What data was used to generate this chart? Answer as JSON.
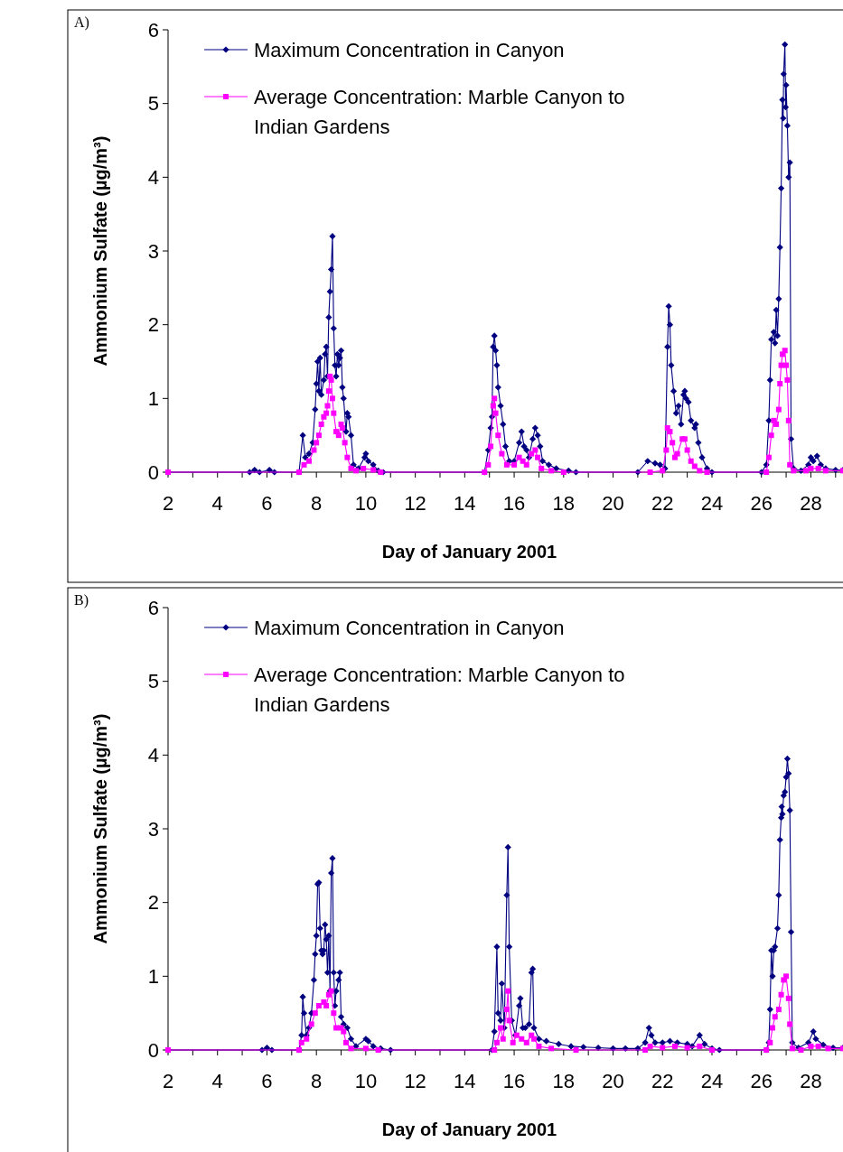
{
  "chart_data": [
    {
      "type": "line",
      "title": "A)",
      "xlabel": "Day of January 2001",
      "ylabel": "Ammonium Sulfate (µg/m³)",
      "xlim": [
        2,
        29.3
      ],
      "ylim": [
        0,
        6
      ],
      "yticks": [
        0,
        1,
        2,
        3,
        4,
        5,
        6
      ],
      "xticks": [
        2,
        {
          "value": 3,
          "label": null
        },
        4,
        {
          "value": 5,
          "label": null
        },
        6,
        {
          "value": 7,
          "label": null
        },
        8,
        {
          "value": 9,
          "label": null
        },
        10,
        {
          "value": 11,
          "label": null
        },
        12,
        {
          "value": 13,
          "label": null
        },
        14,
        {
          "value": 15,
          "label": null
        },
        16,
        {
          "value": 17,
          "label": null
        },
        18,
        {
          "value": 19,
          "label": null
        },
        20,
        {
          "value": 21,
          "label": null
        },
        22,
        {
          "value": 23,
          "label": null
        },
        24,
        {
          "value": 25,
          "label": null
        },
        26,
        {
          "value": 27,
          "label": null
        },
        28,
        {
          "value": 29,
          "label": null
        }
      ],
      "grid": false,
      "legend": "top left",
      "line_style": "solid",
      "series": [
        {
          "name": "Maximum Concentration in Canyon",
          "color": "#000080",
          "marker": "diamond",
          "x": [
            2,
            5.3,
            5.5,
            5.7,
            6.1,
            6.3,
            7.3,
            7.45,
            7.55,
            7.7,
            7.85,
            7.95,
            8.0,
            8.05,
            8.1,
            8.15,
            8.2,
            8.3,
            8.35,
            8.4,
            8.45,
            8.5,
            8.55,
            8.6,
            8.65,
            8.7,
            8.75,
            8.8,
            8.85,
            8.9,
            8.95,
            9.0,
            9.05,
            9.1,
            9.2,
            9.25,
            9.3,
            9.4,
            9.5,
            9.7,
            9.95,
            10.0,
            10.1,
            10.3,
            10.5,
            10.7,
            14.8,
            14.95,
            15.05,
            15.1,
            15.15,
            15.2,
            15.25,
            15.3,
            15.35,
            15.45,
            15.55,
            15.65,
            15.8,
            16.0,
            16.2,
            16.3,
            16.4,
            16.5,
            16.6,
            16.75,
            16.85,
            16.95,
            17.05,
            17.15,
            17.4,
            17.7,
            18.2,
            18.5,
            21.0,
            21.4,
            21.7,
            21.9,
            22.1,
            22.2,
            22.25,
            22.3,
            22.35,
            22.45,
            22.55,
            22.65,
            22.75,
            22.85,
            22.9,
            22.95,
            23.05,
            23.15,
            23.3,
            23.35,
            23.45,
            23.6,
            23.8,
            24.0,
            26.0,
            26.2,
            26.3,
            26.35,
            26.4,
            26.5,
            26.55,
            26.6,
            26.65,
            26.7,
            26.75,
            26.8,
            26.85,
            26.88,
            26.9,
            26.95,
            26.98,
            27.0,
            27.05,
            27.1,
            27.15,
            27.2,
            27.3,
            27.6,
            27.9,
            28.0,
            28.1,
            28.25,
            28.4,
            28.6,
            29.0,
            29.3
          ],
          "values": [
            0,
            0,
            0.03,
            0,
            0.03,
            0,
            0,
            0.5,
            0.2,
            0.25,
            0.4,
            0.85,
            1.2,
            1.5,
            1.1,
            1.55,
            1.05,
            1.25,
            1.6,
            1.7,
            1.3,
            2.1,
            2.45,
            2.75,
            3.2,
            1.95,
            1.45,
            1.3,
            1.6,
            1.45,
            1.55,
            1.65,
            1.15,
            1.0,
            0.55,
            0.8,
            0.75,
            0.5,
            0.1,
            0.05,
            0.2,
            0.25,
            0.15,
            0.1,
            0.02,
            0,
            0,
            0.3,
            0.6,
            0.75,
            1.7,
            1.85,
            1.65,
            1.45,
            1.15,
            0.9,
            0.65,
            0.35,
            0.15,
            0.15,
            0.4,
            0.55,
            0.35,
            0.3,
            0.2,
            0.45,
            0.6,
            0.5,
            0.35,
            0.15,
            0.1,
            0.05,
            0.02,
            0,
            0,
            0.15,
            0.12,
            0.1,
            0.05,
            1.7,
            2.25,
            2.0,
            1.45,
            1.1,
            0.8,
            0.9,
            0.65,
            1.05,
            1.1,
            1.0,
            0.95,
            0.7,
            0.6,
            0.65,
            0.4,
            0.2,
            0.05,
            0,
            0,
            0.1,
            0.7,
            1.25,
            1.8,
            1.9,
            1.75,
            2.2,
            1.85,
            2.35,
            3.05,
            3.85,
            5.05,
            4.8,
            5.4,
            5.8,
            4.95,
            5.25,
            4.7,
            4.0,
            4.2,
            0.45,
            0.05,
            0.02,
            0.1,
            0.2,
            0.15,
            0.22,
            0.1,
            0.05,
            0.03,
            0.03
          ]
        },
        {
          "name": "Average Concentration: Marble Canyon to Indian Gardens",
          "color": "#ff00ff",
          "marker": "square",
          "x": [
            2,
            7.3,
            7.5,
            7.7,
            7.9,
            8.0,
            8.1,
            8.2,
            8.3,
            8.4,
            8.45,
            8.5,
            8.55,
            8.6,
            8.65,
            8.7,
            8.8,
            8.9,
            9.0,
            9.05,
            9.15,
            9.25,
            9.4,
            9.6,
            9.9,
            10.3,
            10.6,
            14.8,
            14.95,
            15.05,
            15.15,
            15.2,
            15.25,
            15.35,
            15.5,
            15.7,
            16.0,
            16.2,
            16.35,
            16.5,
            16.7,
            16.85,
            16.95,
            17.1,
            17.5,
            18,
            21.5,
            22.0,
            22.15,
            22.2,
            22.3,
            22.4,
            22.5,
            22.6,
            22.8,
            22.9,
            23.0,
            23.15,
            23.3,
            23.5,
            23.8,
            26.2,
            26.3,
            26.4,
            26.5,
            26.6,
            26.7,
            26.75,
            26.8,
            26.85,
            26.95,
            27.0,
            27.05,
            27.1,
            27.15,
            27.3,
            27.8,
            28.0,
            28.3,
            28.6,
            29.3
          ],
          "values": [
            0,
            0,
            0.1,
            0.15,
            0.3,
            0.4,
            0.5,
            0.65,
            0.75,
            0.8,
            0.9,
            1.1,
            1.3,
            1.25,
            1.0,
            0.8,
            0.55,
            0.5,
            0.65,
            0.6,
            0.4,
            0.2,
            0.05,
            0.02,
            0.05,
            0.03,
            0,
            0,
            0.1,
            0.35,
            0.9,
            1.0,
            0.8,
            0.5,
            0.25,
            0.1,
            0.1,
            0.2,
            0.15,
            0.1,
            0.25,
            0.3,
            0.2,
            0.05,
            0.02,
            0,
            0,
            0.02,
            0.3,
            0.6,
            0.55,
            0.4,
            0.2,
            0.25,
            0.45,
            0.45,
            0.3,
            0.15,
            0.08,
            0.02,
            0,
            0,
            0.2,
            0.5,
            0.7,
            0.65,
            0.85,
            1.2,
            1.45,
            1.6,
            1.65,
            1.45,
            1.25,
            0.7,
            0.1,
            0.02,
            0.02,
            0.05,
            0.05,
            0.02,
            0.02
          ]
        }
      ]
    },
    {
      "type": "line",
      "title": "B)",
      "xlabel": "Day of January 2001",
      "ylabel": "Ammonium Sulfate (µg/m³)",
      "xlim": [
        2,
        29.3
      ],
      "ylim": [
        0,
        6
      ],
      "yticks": [
        0,
        1,
        2,
        3,
        4,
        5,
        6
      ],
      "xticks": [
        2,
        {
          "value": 3,
          "label": null
        },
        4,
        {
          "value": 5,
          "label": null
        },
        6,
        {
          "value": 7,
          "label": null
        },
        8,
        {
          "value": 9,
          "label": null
        },
        10,
        {
          "value": 11,
          "label": null
        },
        12,
        {
          "value": 13,
          "label": null
        },
        14,
        {
          "value": 15,
          "label": null
        },
        16,
        {
          "value": 17,
          "label": null
        },
        18,
        {
          "value": 19,
          "label": null
        },
        20,
        {
          "value": 21,
          "label": null
        },
        22,
        {
          "value": 23,
          "label": null
        },
        24,
        {
          "value": 25,
          "label": null
        },
        26,
        {
          "value": 27,
          "label": null
        },
        28,
        {
          "value": 29,
          "label": null
        }
      ],
      "grid": false,
      "legend": "top left",
      "line_style": "solid",
      "series": [
        {
          "name": "Maximum Concentration in Canyon",
          "color": "#000080",
          "marker": "diamond",
          "x": [
            2,
            5.8,
            6.0,
            6.2,
            7.3,
            7.4,
            7.45,
            7.5,
            7.6,
            7.7,
            7.8,
            7.9,
            7.95,
            8.0,
            8.05,
            8.1,
            8.15,
            8.2,
            8.25,
            8.3,
            8.35,
            8.4,
            8.45,
            8.5,
            8.55,
            8.6,
            8.65,
            8.7,
            8.75,
            8.8,
            8.9,
            8.95,
            9.0,
            9.1,
            9.25,
            9.4,
            9.6,
            10.0,
            10.1,
            10.3,
            10.6,
            11,
            15.1,
            15.2,
            15.3,
            15.35,
            15.45,
            15.5,
            15.6,
            15.7,
            15.75,
            15.8,
            15.9,
            16.05,
            16.2,
            16.25,
            16.35,
            16.45,
            16.6,
            16.7,
            16.75,
            16.8,
            17.0,
            17.3,
            17.8,
            18.3,
            18.8,
            19.4,
            20,
            20.5,
            21.0,
            21.3,
            21.45,
            21.55,
            21.7,
            22.0,
            22.3,
            22.6,
            23.0,
            23.2,
            23.5,
            23.7,
            24.0,
            24.3,
            26.2,
            26.3,
            26.35,
            26.4,
            26.45,
            26.5,
            26.55,
            26.65,
            26.7,
            26.75,
            26.8,
            26.82,
            26.85,
            26.9,
            26.95,
            27.0,
            27.05,
            27.1,
            27.15,
            27.2,
            27.25,
            27.5,
            27.9,
            28.1,
            28.2,
            28.5,
            28.9,
            29.3
          ],
          "values": [
            0,
            0,
            0.03,
            0,
            0,
            0.2,
            0.72,
            0.5,
            0.2,
            0.3,
            0.5,
            0.95,
            1.3,
            1.55,
            2.25,
            2.27,
            1.65,
            1.35,
            1.3,
            1.35,
            1.7,
            1.5,
            1.05,
            1.55,
            0.8,
            2.4,
            2.6,
            1.05,
            0.6,
            0.8,
            0.95,
            1.05,
            0.45,
            0.35,
            0.3,
            0.15,
            0.05,
            0.15,
            0.12,
            0.05,
            0.02,
            0,
            0,
            0.25,
            1.4,
            0.5,
            0.4,
            0.9,
            0.3,
            2.1,
            2.75,
            1.4,
            0.4,
            0.2,
            0.6,
            0.7,
            0.3,
            0.3,
            0.35,
            1.05,
            1.1,
            0.3,
            0.15,
            0.12,
            0.08,
            0.05,
            0.04,
            0.03,
            0.02,
            0.02,
            0.02,
            0.1,
            0.3,
            0.2,
            0.1,
            0.1,
            0.12,
            0.1,
            0.08,
            0.05,
            0.2,
            0.08,
            0.02,
            0,
            0,
            0.1,
            0.55,
            1.35,
            1.0,
            1.35,
            1.4,
            1.65,
            2.1,
            2.85,
            3.15,
            3.3,
            3.2,
            3.45,
            3.5,
            3.7,
            3.95,
            3.75,
            3.25,
            1.6,
            0.1,
            0.03,
            0.1,
            0.25,
            0.15,
            0.07,
            0.03,
            0.03
          ]
        },
        {
          "name": "Average Concentration: Marble Canyon to Indian Gardens",
          "color": "#ff00ff",
          "marker": "square",
          "x": [
            2,
            7.3,
            7.4,
            7.6,
            7.8,
            7.95,
            8.1,
            8.3,
            8.4,
            8.5,
            8.6,
            8.7,
            8.8,
            9.0,
            9.1,
            9.2,
            9.4,
            10.0,
            10.5,
            15.2,
            15.3,
            15.45,
            15.55,
            15.7,
            15.75,
            15.8,
            15.95,
            16.1,
            16.3,
            16.5,
            16.7,
            16.8,
            17.0,
            17.5,
            18.5,
            21.3,
            21.5,
            22.0,
            22.5,
            23.0,
            23.5,
            24.0,
            26.2,
            26.35,
            26.45,
            26.55,
            26.7,
            26.8,
            26.9,
            27.0,
            27.1,
            27.15,
            27.25,
            27.6,
            28.0,
            28.3,
            28.7,
            29.3
          ],
          "values": [
            0,
            0,
            0.1,
            0.15,
            0.35,
            0.5,
            0.6,
            0.65,
            0.6,
            0.75,
            0.8,
            0.5,
            0.3,
            0.3,
            0.25,
            0.1,
            0.02,
            0.02,
            0,
            0,
            0.1,
            0.3,
            0.15,
            0.55,
            0.8,
            0.4,
            0.1,
            0.2,
            0.15,
            0.1,
            0.2,
            0.15,
            0.05,
            0.02,
            0,
            0,
            0.05,
            0.03,
            0.05,
            0.03,
            0.05,
            0,
            0,
            0.1,
            0.3,
            0.45,
            0.55,
            0.75,
            0.95,
            1.0,
            0.7,
            0.35,
            0.02,
            0,
            0.05,
            0.05,
            0.02,
            0.02
          ]
        }
      ]
    }
  ]
}
